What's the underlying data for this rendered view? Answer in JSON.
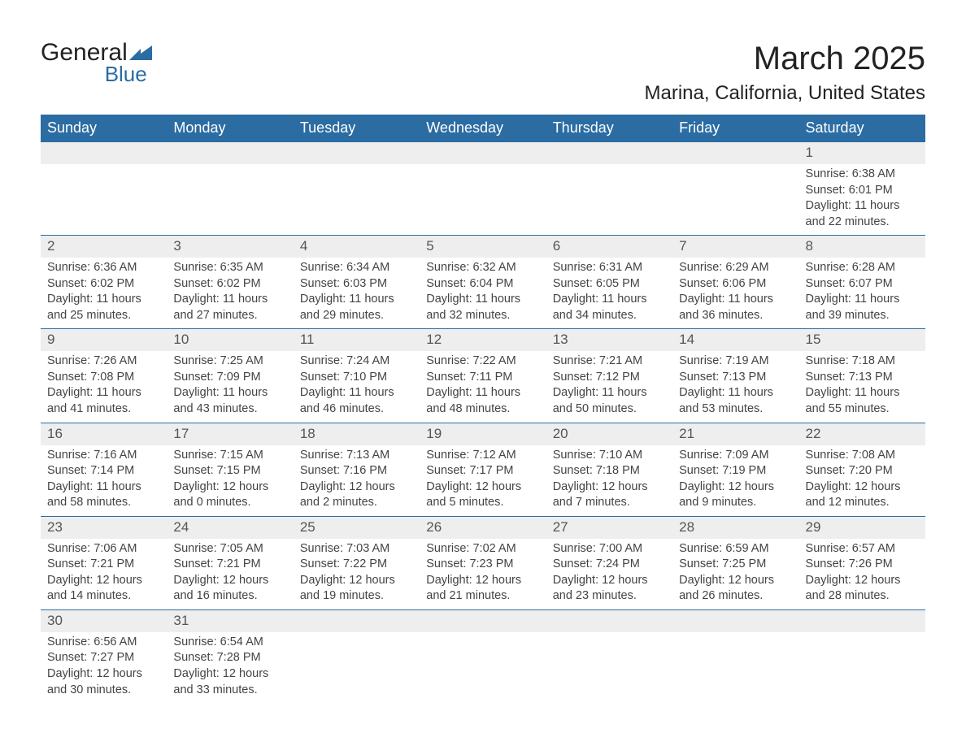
{
  "logo": {
    "text_top": "General",
    "text_bottom": "Blue",
    "shape_color": "#2b6ca3"
  },
  "title": "March 2025",
  "location": "Marina, California, United States",
  "theme": {
    "header_bg": "#2b6ca3",
    "header_fg": "#ffffff",
    "daynum_bg": "#eeeeee",
    "row_border": "#2b6ca3",
    "text_color": "#444444"
  },
  "weekdays": [
    "Sunday",
    "Monday",
    "Tuesday",
    "Wednesday",
    "Thursday",
    "Friday",
    "Saturday"
  ],
  "weeks": [
    [
      null,
      null,
      null,
      null,
      null,
      null,
      {
        "num": "1",
        "sunrise": "Sunrise: 6:38 AM",
        "sunset": "Sunset: 6:01 PM",
        "daylight": "Daylight: 11 hours and 22 minutes."
      }
    ],
    [
      {
        "num": "2",
        "sunrise": "Sunrise: 6:36 AM",
        "sunset": "Sunset: 6:02 PM",
        "daylight": "Daylight: 11 hours and 25 minutes."
      },
      {
        "num": "3",
        "sunrise": "Sunrise: 6:35 AM",
        "sunset": "Sunset: 6:02 PM",
        "daylight": "Daylight: 11 hours and 27 minutes."
      },
      {
        "num": "4",
        "sunrise": "Sunrise: 6:34 AM",
        "sunset": "Sunset: 6:03 PM",
        "daylight": "Daylight: 11 hours and 29 minutes."
      },
      {
        "num": "5",
        "sunrise": "Sunrise: 6:32 AM",
        "sunset": "Sunset: 6:04 PM",
        "daylight": "Daylight: 11 hours and 32 minutes."
      },
      {
        "num": "6",
        "sunrise": "Sunrise: 6:31 AM",
        "sunset": "Sunset: 6:05 PM",
        "daylight": "Daylight: 11 hours and 34 minutes."
      },
      {
        "num": "7",
        "sunrise": "Sunrise: 6:29 AM",
        "sunset": "Sunset: 6:06 PM",
        "daylight": "Daylight: 11 hours and 36 minutes."
      },
      {
        "num": "8",
        "sunrise": "Sunrise: 6:28 AM",
        "sunset": "Sunset: 6:07 PM",
        "daylight": "Daylight: 11 hours and 39 minutes."
      }
    ],
    [
      {
        "num": "9",
        "sunrise": "Sunrise: 7:26 AM",
        "sunset": "Sunset: 7:08 PM",
        "daylight": "Daylight: 11 hours and 41 minutes."
      },
      {
        "num": "10",
        "sunrise": "Sunrise: 7:25 AM",
        "sunset": "Sunset: 7:09 PM",
        "daylight": "Daylight: 11 hours and 43 minutes."
      },
      {
        "num": "11",
        "sunrise": "Sunrise: 7:24 AM",
        "sunset": "Sunset: 7:10 PM",
        "daylight": "Daylight: 11 hours and 46 minutes."
      },
      {
        "num": "12",
        "sunrise": "Sunrise: 7:22 AM",
        "sunset": "Sunset: 7:11 PM",
        "daylight": "Daylight: 11 hours and 48 minutes."
      },
      {
        "num": "13",
        "sunrise": "Sunrise: 7:21 AM",
        "sunset": "Sunset: 7:12 PM",
        "daylight": "Daylight: 11 hours and 50 minutes."
      },
      {
        "num": "14",
        "sunrise": "Sunrise: 7:19 AM",
        "sunset": "Sunset: 7:13 PM",
        "daylight": "Daylight: 11 hours and 53 minutes."
      },
      {
        "num": "15",
        "sunrise": "Sunrise: 7:18 AM",
        "sunset": "Sunset: 7:13 PM",
        "daylight": "Daylight: 11 hours and 55 minutes."
      }
    ],
    [
      {
        "num": "16",
        "sunrise": "Sunrise: 7:16 AM",
        "sunset": "Sunset: 7:14 PM",
        "daylight": "Daylight: 11 hours and 58 minutes."
      },
      {
        "num": "17",
        "sunrise": "Sunrise: 7:15 AM",
        "sunset": "Sunset: 7:15 PM",
        "daylight": "Daylight: 12 hours and 0 minutes."
      },
      {
        "num": "18",
        "sunrise": "Sunrise: 7:13 AM",
        "sunset": "Sunset: 7:16 PM",
        "daylight": "Daylight: 12 hours and 2 minutes."
      },
      {
        "num": "19",
        "sunrise": "Sunrise: 7:12 AM",
        "sunset": "Sunset: 7:17 PM",
        "daylight": "Daylight: 12 hours and 5 minutes."
      },
      {
        "num": "20",
        "sunrise": "Sunrise: 7:10 AM",
        "sunset": "Sunset: 7:18 PM",
        "daylight": "Daylight: 12 hours and 7 minutes."
      },
      {
        "num": "21",
        "sunrise": "Sunrise: 7:09 AM",
        "sunset": "Sunset: 7:19 PM",
        "daylight": "Daylight: 12 hours and 9 minutes."
      },
      {
        "num": "22",
        "sunrise": "Sunrise: 7:08 AM",
        "sunset": "Sunset: 7:20 PM",
        "daylight": "Daylight: 12 hours and 12 minutes."
      }
    ],
    [
      {
        "num": "23",
        "sunrise": "Sunrise: 7:06 AM",
        "sunset": "Sunset: 7:21 PM",
        "daylight": "Daylight: 12 hours and 14 minutes."
      },
      {
        "num": "24",
        "sunrise": "Sunrise: 7:05 AM",
        "sunset": "Sunset: 7:21 PM",
        "daylight": "Daylight: 12 hours and 16 minutes."
      },
      {
        "num": "25",
        "sunrise": "Sunrise: 7:03 AM",
        "sunset": "Sunset: 7:22 PM",
        "daylight": "Daylight: 12 hours and 19 minutes."
      },
      {
        "num": "26",
        "sunrise": "Sunrise: 7:02 AM",
        "sunset": "Sunset: 7:23 PM",
        "daylight": "Daylight: 12 hours and 21 minutes."
      },
      {
        "num": "27",
        "sunrise": "Sunrise: 7:00 AM",
        "sunset": "Sunset: 7:24 PM",
        "daylight": "Daylight: 12 hours and 23 minutes."
      },
      {
        "num": "28",
        "sunrise": "Sunrise: 6:59 AM",
        "sunset": "Sunset: 7:25 PM",
        "daylight": "Daylight: 12 hours and 26 minutes."
      },
      {
        "num": "29",
        "sunrise": "Sunrise: 6:57 AM",
        "sunset": "Sunset: 7:26 PM",
        "daylight": "Daylight: 12 hours and 28 minutes."
      }
    ],
    [
      {
        "num": "30",
        "sunrise": "Sunrise: 6:56 AM",
        "sunset": "Sunset: 7:27 PM",
        "daylight": "Daylight: 12 hours and 30 minutes."
      },
      {
        "num": "31",
        "sunrise": "Sunrise: 6:54 AM",
        "sunset": "Sunset: 7:28 PM",
        "daylight": "Daylight: 12 hours and 33 minutes."
      },
      null,
      null,
      null,
      null,
      null
    ]
  ]
}
